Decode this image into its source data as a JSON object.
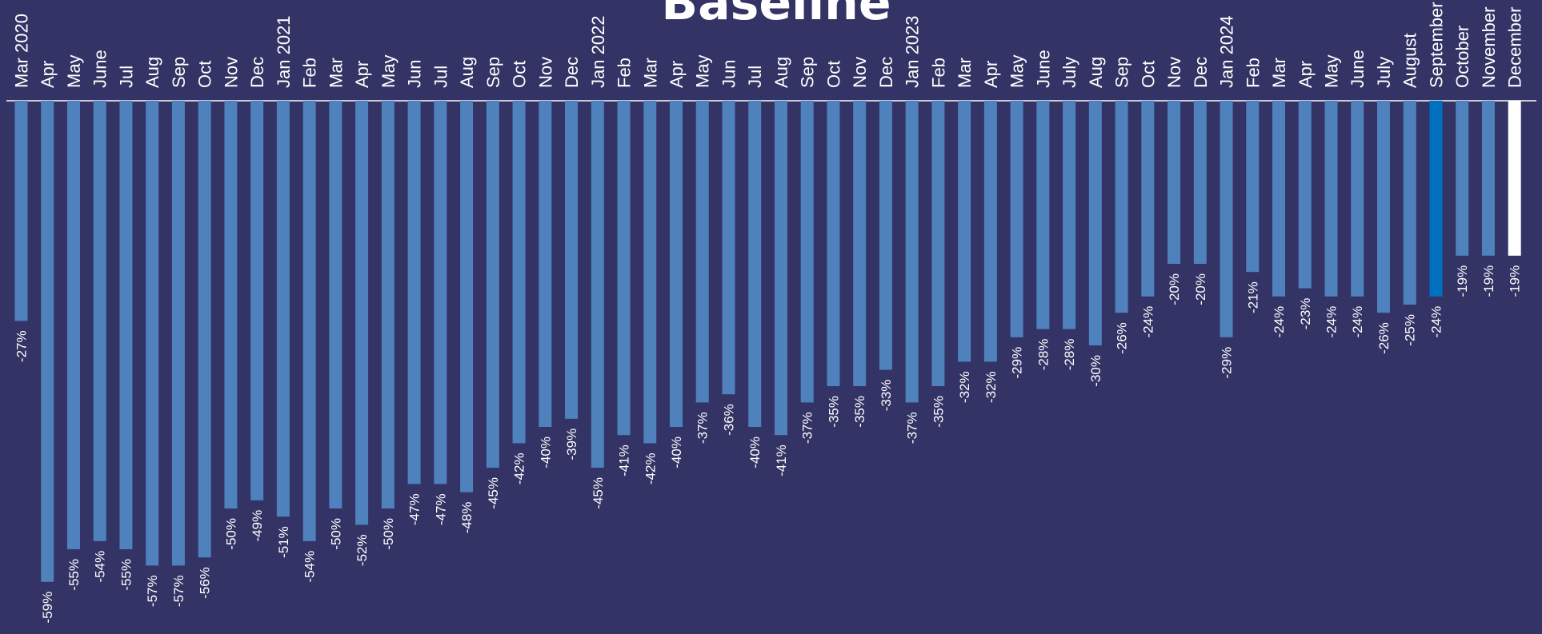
{
  "chart_data": {
    "type": "bar",
    "title": "Baseline",
    "categories": [
      "Mar 2020",
      "Apr",
      "May",
      "June",
      "Jul",
      "Aug",
      "Sep",
      "Oct",
      "Nov",
      "Dec",
      "Jan 2021",
      "Feb",
      "Mar",
      "Apr",
      "May",
      "Jun",
      "Jul",
      "Aug",
      "Sep",
      "Oct",
      "Nov",
      "Dec",
      "Jan 2022",
      "Feb",
      "Mar",
      "Apr",
      "May",
      "Jun",
      "Jul",
      "Aug",
      "Sep",
      "Oct",
      "Nov",
      "Dec",
      "Jan 2023",
      "Feb",
      "Mar",
      "Apr",
      "May",
      "June",
      "July",
      "Aug",
      "Sep",
      "Oct",
      "Nov",
      "Dec",
      "Jan 2024",
      "Feb",
      "Mar",
      "Apr",
      "May",
      "June",
      "July",
      "August",
      "September",
      "October",
      "November",
      "December"
    ],
    "values": [
      -27,
      -59,
      -55,
      -54,
      -55,
      -57,
      -57,
      -56,
      -50,
      -49,
      -51,
      -54,
      -50,
      -52,
      -50,
      -47,
      -47,
      -48,
      -45,
      -42,
      -40,
      -39,
      -45,
      -41,
      -42,
      -40,
      -37,
      -36,
      -40,
      -41,
      -37,
      -35,
      -35,
      -33,
      -37,
      -35,
      -32,
      -32,
      -29,
      -28,
      -28,
      -30,
      -26,
      -24,
      -20,
      -20,
      -29,
      -21,
      -24,
      -23,
      -24,
      -24,
      -26,
      -25,
      -24,
      -19,
      -19,
      -19
    ],
    "value_labels": [
      "-27%",
      "-59%",
      "-55%",
      "-54%",
      "-55%",
      "-57%",
      "-57%",
      "-56%",
      "-50%",
      "-49%",
      "-51%",
      "-54%",
      "-50%",
      "-52%",
      "-50%",
      "-47%",
      "-47%",
      "-48%",
      "-45%",
      "-42%",
      "-40%",
      "-39%",
      "-45%",
      "-41%",
      "-42%",
      "-40%",
      "-37%",
      "-36%",
      "-40%",
      "-41%",
      "-37%",
      "-35%",
      "-35%",
      "-33%",
      "-37%",
      "-35%",
      "-32%",
      "-32%",
      "-29%",
      "-28%",
      "-28%",
      "-30%",
      "-26%",
      "-24%",
      "-20%",
      "-20%",
      "-29%",
      "-21%",
      "-24%",
      "-23%",
      "-24%",
      "-24%",
      "-26%",
      "-25%",
      "-24%",
      "-19%",
      "-19%",
      "-19%"
    ],
    "ylim": [
      -60,
      0
    ],
    "grid": false,
    "colors": {
      "background": "#333366",
      "bar": "#4f81bd",
      "highlight_september": "#0070c0",
      "highlight_december": "#ffffff",
      "axis_line": "#ffffff",
      "text": "#ffffff"
    },
    "highlights": [
      {
        "category": "September",
        "color": "#0070c0"
      },
      {
        "category": "December",
        "color": "#ffffff"
      }
    ]
  }
}
